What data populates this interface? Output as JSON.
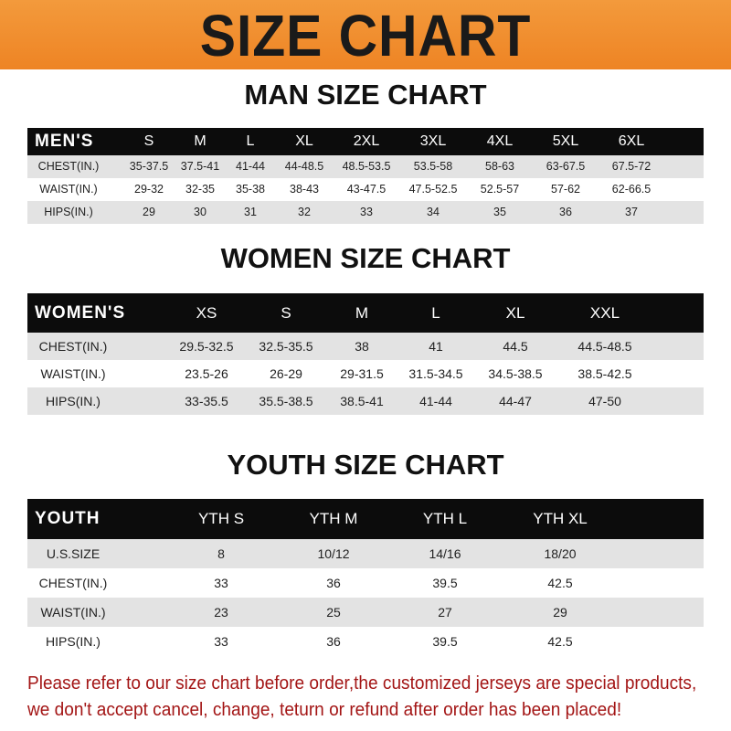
{
  "banner": {
    "title": "SIZE CHART",
    "color": "#f08a2c"
  },
  "men": {
    "title": "MAN SIZE CHART",
    "header": [
      "MEN'S",
      "S",
      "M",
      "L",
      "XL",
      "2XL",
      "3XL",
      "4XL",
      "5XL",
      "6XL"
    ],
    "rows": [
      [
        "CHEST(IN.)",
        "35-37.5",
        "37.5-41",
        "41-44",
        "44-48.5",
        "48.5-53.5",
        "53.5-58",
        "58-63",
        "63-67.5",
        "67.5-72"
      ],
      [
        "WAIST(IN.)",
        "29-32",
        "32-35",
        "35-38",
        "38-43",
        "43-47.5",
        "47.5-52.5",
        "52.5-57",
        "57-62",
        "62-66.5"
      ],
      [
        "HIPS(IN.)",
        "29",
        "30",
        "31",
        "32",
        "33",
        "34",
        "35",
        "36",
        "37"
      ]
    ]
  },
  "women": {
    "title": "WOMEN SIZE CHART",
    "header": [
      "WOMEN'S",
      "XS",
      "S",
      "M",
      "L",
      "XL",
      "XXL"
    ],
    "rows": [
      [
        "CHEST(IN.)",
        "29.5-32.5",
        "32.5-35.5",
        "38",
        "41",
        "44.5",
        "44.5-48.5"
      ],
      [
        "WAIST(IN.)",
        "23.5-26",
        "26-29",
        "29-31.5",
        "31.5-34.5",
        "34.5-38.5",
        "38.5-42.5"
      ],
      [
        "HIPS(IN.)",
        "33-35.5",
        "35.5-38.5",
        "38.5-41",
        "41-44",
        "44-47",
        "47-50"
      ]
    ]
  },
  "youth": {
    "title": "YOUTH SIZE CHART",
    "header": [
      "YOUTH",
      "YTH S",
      "YTH M",
      "YTH L",
      "YTH XL"
    ],
    "rows": [
      [
        "U.S.SIZE",
        "8",
        "10/12",
        "14/16",
        "18/20"
      ],
      [
        "CHEST(IN.)",
        "33",
        "36",
        "39.5",
        "42.5"
      ],
      [
        "WAIST(IN.)",
        "23",
        "25",
        "27",
        "29"
      ],
      [
        "HIPS(IN.)",
        "33",
        "36",
        "39.5",
        "42.5"
      ]
    ]
  },
  "footer": {
    "line1": "Please refer to our size chart before order,the customized jerseys are special products,",
    "line2": "we don't accept cancel, change, teturn or refund after order has been placed!"
  }
}
